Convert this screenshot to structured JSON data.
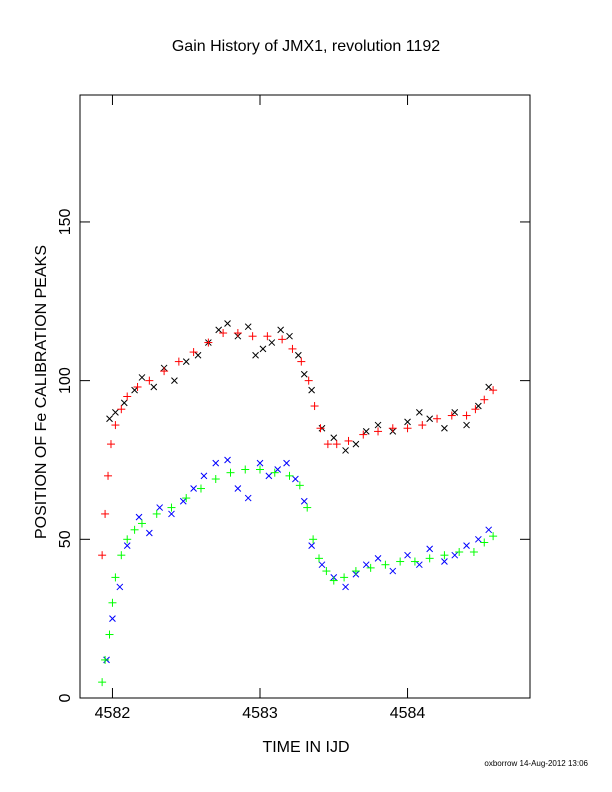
{
  "chart_data": {
    "type": "scatter",
    "title": "Gain History of JMX1, revolution 1192",
    "x_label": "TIME IN IJD",
    "y_label": "POSITION OF Fe CALIBRATION PEAKS",
    "footnote": "oxborrow 14-Aug-2012 13:06",
    "xlim": [
      4581.78,
      4584.83
    ],
    "ylim": [
      0,
      190
    ],
    "xticks": [
      4582,
      4583,
      4584
    ],
    "yticks": [
      0,
      50,
      100,
      150
    ],
    "series": [
      {
        "color": "#000000",
        "marker": "x",
        "x": [
          4581.98,
          4582.02,
          4582.08,
          4582.15,
          4582.2,
          4582.28,
          4582.35,
          4582.42,
          4582.5,
          4582.58,
          4582.65,
          4582.72,
          4582.78,
          4582.85,
          4582.92,
          4582.97,
          4583.02,
          4583.08,
          4583.14,
          4583.2,
          4583.26,
          4583.3,
          4583.35,
          4583.42,
          4583.5,
          4583.58,
          4583.65,
          4583.72,
          4583.8,
          4583.9,
          4584.0,
          4584.08,
          4584.15,
          4584.25,
          4584.32,
          4584.4,
          4584.48,
          4584.55
        ],
        "y": [
          88,
          90,
          93,
          97,
          101,
          98,
          104,
          100,
          106,
          108,
          112,
          116,
          118,
          114,
          117,
          108,
          110,
          112,
          116,
          114,
          108,
          102,
          97,
          85,
          82,
          78,
          80,
          84,
          86,
          84,
          87,
          90,
          88,
          85,
          90,
          86,
          92,
          98
        ]
      },
      {
        "color": "#ff0000",
        "marker": "+",
        "x": [
          4581.93,
          4581.95,
          4581.97,
          4581.99,
          4582.02,
          4582.06,
          4582.1,
          4582.17,
          4582.25,
          4582.35,
          4582.45,
          4582.55,
          4582.65,
          4582.75,
          4582.85,
          4582.95,
          4583.05,
          4583.15,
          4583.22,
          4583.28,
          4583.33,
          4583.37,
          4583.41,
          4583.46,
          4583.52,
          4583.6,
          4583.7,
          4583.8,
          4583.9,
          4584.0,
          4584.1,
          4584.2,
          4584.3,
          4584.4,
          4584.46,
          4584.52,
          4584.58
        ],
        "y": [
          45,
          58,
          70,
          80,
          86,
          91,
          95,
          98,
          100,
          103,
          106,
          109,
          112,
          115,
          115,
          114,
          114,
          113,
          110,
          106,
          100,
          92,
          85,
          80,
          80,
          81,
          83,
          84,
          85,
          85,
          86,
          88,
          89,
          89,
          91,
          94,
          97
        ]
      },
      {
        "color": "#0000ff",
        "marker": "x",
        "x": [
          4581.96,
          4582.0,
          4582.05,
          4582.1,
          4582.18,
          4582.25,
          4582.32,
          4582.4,
          4582.48,
          4582.55,
          4582.62,
          4582.7,
          4582.78,
          4582.85,
          4582.92,
          4583.0,
          4583.06,
          4583.12,
          4583.18,
          4583.24,
          4583.3,
          4583.35,
          4583.42,
          4583.5,
          4583.58,
          4583.65,
          4583.72,
          4583.8,
          4583.9,
          4584.0,
          4584.08,
          4584.15,
          4584.25,
          4584.32,
          4584.4,
          4584.48,
          4584.55
        ],
        "y": [
          12,
          25,
          35,
          48,
          57,
          52,
          60,
          58,
          62,
          66,
          70,
          74,
          75,
          66,
          63,
          74,
          70,
          72,
          74,
          69,
          62,
          48,
          42,
          38,
          35,
          39,
          42,
          44,
          40,
          45,
          42,
          47,
          43,
          45,
          48,
          50,
          53
        ]
      },
      {
        "color": "#00ff00",
        "marker": "+",
        "x": [
          4581.93,
          4581.95,
          4581.98,
          4582.0,
          4582.02,
          4582.06,
          4582.1,
          4582.15,
          4582.2,
          4582.3,
          4582.4,
          4582.5,
          4582.6,
          4582.7,
          4582.8,
          4582.9,
          4583.0,
          4583.1,
          4583.2,
          4583.27,
          4583.32,
          4583.36,
          4583.4,
          4583.45,
          4583.5,
          4583.57,
          4583.65,
          4583.75,
          4583.85,
          4583.95,
          4584.05,
          4584.15,
          4584.25,
          4584.35,
          4584.45,
          4584.52,
          4584.58
        ],
        "y": [
          5,
          12,
          20,
          30,
          38,
          45,
          50,
          53,
          55,
          58,
          60,
          63,
          66,
          69,
          71,
          72,
          72,
          71,
          70,
          67,
          60,
          50,
          44,
          40,
          37,
          38,
          40,
          41,
          42,
          43,
          43,
          44,
          45,
          46,
          46,
          49,
          51
        ]
      }
    ]
  }
}
